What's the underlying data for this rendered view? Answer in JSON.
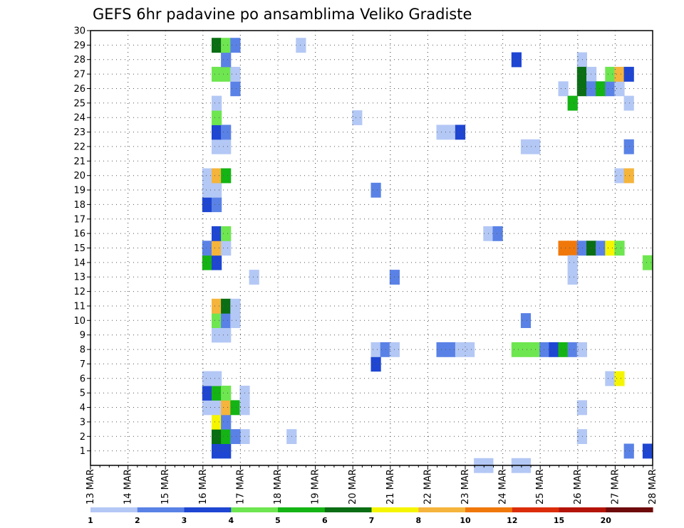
{
  "chart_data": {
    "type": "heatmap",
    "title": "GEFS 6hr padavine po ansamblima Veliko Gradiste",
    "y_ticks": [
      "1",
      "2",
      "3",
      "4",
      "5",
      "6",
      "7",
      "8",
      "9",
      "10",
      "11",
      "12",
      "13",
      "14",
      "15",
      "16",
      "17",
      "18",
      "19",
      "20",
      "21",
      "22",
      "23",
      "24",
      "25",
      "26",
      "27",
      "28",
      "29",
      "30"
    ],
    "x_ticks": [
      "13 MAR",
      "14 MAR",
      "15 MAR",
      "16 MAR",
      "17 MAR",
      "18 MAR",
      "19 MAR",
      "20 MAR",
      "21 MAR",
      "22 MAR",
      "23 MAR",
      "24 MAR",
      "25 MAR",
      "26 MAR",
      "27 MAR",
      "28 MAR"
    ],
    "x_range_days": [
      13,
      28
    ],
    "y_range": [
      0,
      30
    ],
    "grid": true,
    "legend_position": "bottom",
    "legend_labels": [
      "1",
      "2",
      "3",
      "4",
      "5",
      "6",
      "7",
      "8",
      "10",
      "12",
      "15",
      "20"
    ],
    "palette": [
      "#b4c8f5",
      "#5a82e6",
      "#1e46d2",
      "#6ee650",
      "#14b414",
      "#0a6e14",
      "#f5f500",
      "#f5b43c",
      "#f0780a",
      "#dc2d0a",
      "#b41408",
      "#6e0a0a"
    ],
    "cells": [
      {
        "t": 16.25,
        "m": 0,
        "lvl": 3
      },
      {
        "t": 16.5,
        "m": 0,
        "lvl": 3
      },
      {
        "t": 17.0,
        "m": 1,
        "lvl": 1
      },
      {
        "t": 18.25,
        "m": 1,
        "lvl": 1
      },
      {
        "t": 16.25,
        "m": 1,
        "lvl": 6
      },
      {
        "t": 16.5,
        "m": 1,
        "lvl": 5
      },
      {
        "t": 16.75,
        "m": 1,
        "lvl": 2
      },
      {
        "t": 16.25,
        "m": 2,
        "lvl": 7
      },
      {
        "t": 16.5,
        "m": 2,
        "lvl": 2
      },
      {
        "t": 16.0,
        "m": 3,
        "lvl": 1
      },
      {
        "t": 16.25,
        "m": 3,
        "lvl": 1
      },
      {
        "t": 16.5,
        "m": 3,
        "lvl": 8
      },
      {
        "t": 16.75,
        "m": 3,
        "lvl": 5
      },
      {
        "t": 17.0,
        "m": 3,
        "lvl": 1
      },
      {
        "t": 16.0,
        "m": 4,
        "lvl": 3
      },
      {
        "t": 16.25,
        "m": 4,
        "lvl": 5
      },
      {
        "t": 16.5,
        "m": 4,
        "lvl": 4
      },
      {
        "t": 17.0,
        "m": 4,
        "lvl": 1
      },
      {
        "t": 16.0,
        "m": 5,
        "lvl": 1
      },
      {
        "t": 16.25,
        "m": 5,
        "lvl": 1
      },
      {
        "t": 16.25,
        "m": 8,
        "lvl": 1
      },
      {
        "t": 16.5,
        "m": 8,
        "lvl": 1
      },
      {
        "t": 16.25,
        "m": 9,
        "lvl": 4
      },
      {
        "t": 16.5,
        "m": 9,
        "lvl": 2
      },
      {
        "t": 16.75,
        "m": 9,
        "lvl": 1
      },
      {
        "t": 16.25,
        "m": 10,
        "lvl": 8
      },
      {
        "t": 16.5,
        "m": 10,
        "lvl": 6
      },
      {
        "t": 16.75,
        "m": 10,
        "lvl": 1
      },
      {
        "t": 17.25,
        "m": 12,
        "lvl": 1
      },
      {
        "t": 16.0,
        "m": 13,
        "lvl": 5
      },
      {
        "t": 16.25,
        "m": 13,
        "lvl": 3
      },
      {
        "t": 16.0,
        "m": 14,
        "lvl": 2
      },
      {
        "t": 16.25,
        "m": 14,
        "lvl": 8
      },
      {
        "t": 16.5,
        "m": 14,
        "lvl": 1
      },
      {
        "t": 16.25,
        "m": 15,
        "lvl": 3
      },
      {
        "t": 16.5,
        "m": 15,
        "lvl": 4
      },
      {
        "t": 16.0,
        "m": 17,
        "lvl": 3
      },
      {
        "t": 16.25,
        "m": 17,
        "lvl": 2
      },
      {
        "t": 16.0,
        "m": 18,
        "lvl": 1
      },
      {
        "t": 16.25,
        "m": 18,
        "lvl": 1
      },
      {
        "t": 16.0,
        "m": 19,
        "lvl": 1
      },
      {
        "t": 16.25,
        "m": 19,
        "lvl": 8
      },
      {
        "t": 16.5,
        "m": 19,
        "lvl": 5
      },
      {
        "t": 16.25,
        "m": 21,
        "lvl": 1
      },
      {
        "t": 16.5,
        "m": 21,
        "lvl": 1
      },
      {
        "t": 16.25,
        "m": 22,
        "lvl": 3
      },
      {
        "t": 16.5,
        "m": 22,
        "lvl": 2
      },
      {
        "t": 16.25,
        "m": 23,
        "lvl": 4
      },
      {
        "t": 16.25,
        "m": 24,
        "lvl": 1
      },
      {
        "t": 16.75,
        "m": 25,
        "lvl": 2
      },
      {
        "t": 16.25,
        "m": 26,
        "lvl": 4
      },
      {
        "t": 16.5,
        "m": 26,
        "lvl": 4
      },
      {
        "t": 16.75,
        "m": 26,
        "lvl": 1
      },
      {
        "t": 16.5,
        "m": 27,
        "lvl": 2
      },
      {
        "t": 16.25,
        "m": 28,
        "lvl": 6
      },
      {
        "t": 16.5,
        "m": 28,
        "lvl": 4
      },
      {
        "t": 16.75,
        "m": 28,
        "lvl": 2
      },
      {
        "t": 18.5,
        "m": 28,
        "lvl": 1
      },
      {
        "t": 20.0,
        "m": 23,
        "lvl": 1
      },
      {
        "t": 20.5,
        "m": 6,
        "lvl": 3
      },
      {
        "t": 20.5,
        "m": 7,
        "lvl": 1
      },
      {
        "t": 20.75,
        "m": 7,
        "lvl": 2
      },
      {
        "t": 21.0,
        "m": 7,
        "lvl": 1
      },
      {
        "t": 20.5,
        "m": 18,
        "lvl": 2
      },
      {
        "t": 21.0,
        "m": 12,
        "lvl": 2
      },
      {
        "t": 22.25,
        "m": 7,
        "lvl": 2
      },
      {
        "t": 22.5,
        "m": 7,
        "lvl": 2
      },
      {
        "t": 22.75,
        "m": 7,
        "lvl": 1
      },
      {
        "t": 23.0,
        "m": 7,
        "lvl": 1
      },
      {
        "t": 22.25,
        "m": 22,
        "lvl": 1
      },
      {
        "t": 22.5,
        "m": 22,
        "lvl": 1
      },
      {
        "t": 22.75,
        "m": 22,
        "lvl": 3
      },
      {
        "t": 23.25,
        "m": -1,
        "lvl": 1
      },
      {
        "t": 23.5,
        "m": -1,
        "lvl": 1
      },
      {
        "t": 24.25,
        "m": -1,
        "lvl": 1
      },
      {
        "t": 24.5,
        "m": -1,
        "lvl": 1
      },
      {
        "t": 23.5,
        "m": 15,
        "lvl": 1
      },
      {
        "t": 23.75,
        "m": 15,
        "lvl": 2
      },
      {
        "t": 24.25,
        "m": 7,
        "lvl": 4
      },
      {
        "t": 24.5,
        "m": 7,
        "lvl": 4
      },
      {
        "t": 24.75,
        "m": 7,
        "lvl": 4
      },
      {
        "t": 25.0,
        "m": 7,
        "lvl": 2
      },
      {
        "t": 25.25,
        "m": 7,
        "lvl": 3
      },
      {
        "t": 25.5,
        "m": 7,
        "lvl": 5
      },
      {
        "t": 25.75,
        "m": 7,
        "lvl": 2
      },
      {
        "t": 26.0,
        "m": 7,
        "lvl": 1
      },
      {
        "t": 24.25,
        "m": 27,
        "lvl": 3
      },
      {
        "t": 24.5,
        "m": 9,
        "lvl": 2
      },
      {
        "t": 24.5,
        "m": 21,
        "lvl": 1
      },
      {
        "t": 24.75,
        "m": 21,
        "lvl": 1
      },
      {
        "t": 25.5,
        "m": 14,
        "lvl": 9
      },
      {
        "t": 25.75,
        "m": 14,
        "lvl": 9
      },
      {
        "t": 26.0,
        "m": 14,
        "lvl": 2
      },
      {
        "t": 26.25,
        "m": 14,
        "lvl": 6
      },
      {
        "t": 26.5,
        "m": 14,
        "lvl": 2
      },
      {
        "t": 26.75,
        "m": 14,
        "lvl": 7
      },
      {
        "t": 27.0,
        "m": 14,
        "lvl": 4
      },
      {
        "t": 25.75,
        "m": 12,
        "lvl": 1
      },
      {
        "t": 25.75,
        "m": 13,
        "lvl": 1
      },
      {
        "t": 25.5,
        "m": 25,
        "lvl": 1
      },
      {
        "t": 25.75,
        "m": 24,
        "lvl": 5
      },
      {
        "t": 26.0,
        "m": 27,
        "lvl": 1
      },
      {
        "t": 26.0,
        "m": 26,
        "lvl": 6
      },
      {
        "t": 26.25,
        "m": 26,
        "lvl": 1
      },
      {
        "t": 26.0,
        "m": 25,
        "lvl": 6
      },
      {
        "t": 26.25,
        "m": 25,
        "lvl": 2
      },
      {
        "t": 26.5,
        "m": 25,
        "lvl": 5
      },
      {
        "t": 26.75,
        "m": 25,
        "lvl": 2
      },
      {
        "t": 27.0,
        "m": 25,
        "lvl": 1
      },
      {
        "t": 26.75,
        "m": 26,
        "lvl": 4
      },
      {
        "t": 27.0,
        "m": 26,
        "lvl": 8
      },
      {
        "t": 27.25,
        "m": 26,
        "lvl": 3
      },
      {
        "t": 26.0,
        "m": 3,
        "lvl": 1
      },
      {
        "t": 26.0,
        "m": 1,
        "lvl": 1
      },
      {
        "t": 26.75,
        "m": 5,
        "lvl": 1
      },
      {
        "t": 27.0,
        "m": 5,
        "lvl": 7
      },
      {
        "t": 27.0,
        "m": 19,
        "lvl": 1
      },
      {
        "t": 27.25,
        "m": 19,
        "lvl": 8
      },
      {
        "t": 27.25,
        "m": 21,
        "lvl": 2
      },
      {
        "t": 27.25,
        "m": 24,
        "lvl": 1
      },
      {
        "t": 27.25,
        "m": 0,
        "lvl": 2
      },
      {
        "t": 27.75,
        "m": 0,
        "lvl": 3
      },
      {
        "t": 27.75,
        "m": 13,
        "lvl": 4
      }
    ]
  }
}
